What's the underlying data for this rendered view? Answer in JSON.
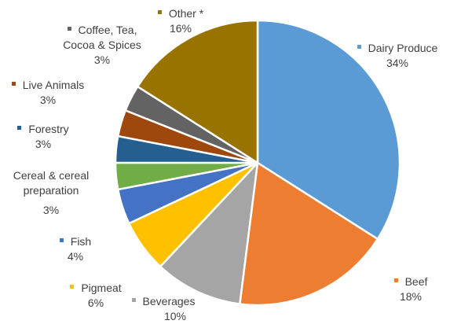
{
  "chart_data": {
    "type": "pie",
    "title": "",
    "start_angle_deg": 0,
    "direction": "clockwise",
    "slices": [
      {
        "name": "Dairy Produce",
        "value": 34,
        "label": "34%",
        "color": "#5B9BD5"
      },
      {
        "name": "Beef",
        "value": 18,
        "label": "18%",
        "color": "#ED7D31"
      },
      {
        "name": "Beverages",
        "value": 10,
        "label": "10%",
        "color": "#A5A5A5"
      },
      {
        "name": "Pigmeat",
        "value": 6,
        "label": "6%",
        "color": "#FFC000"
      },
      {
        "name": "Fish",
        "value": 4,
        "label": "4%",
        "color": "#4472C4"
      },
      {
        "name": "Cereal & cereal preparation",
        "value": 3,
        "label": "3%",
        "color": "#70AD47"
      },
      {
        "name": "Forestry",
        "value": 3,
        "label": "3%",
        "color": "#255E91"
      },
      {
        "name": "Live Animals",
        "value": 3,
        "label": "3%",
        "color": "#9E480E"
      },
      {
        "name": "Coffee, Tea, Cocoa  & Spices",
        "value": 3,
        "label": "3%",
        "color": "#636363"
      },
      {
        "name": "Other *",
        "value": 16,
        "label": "16%",
        "color": "#997300"
      }
    ]
  }
}
